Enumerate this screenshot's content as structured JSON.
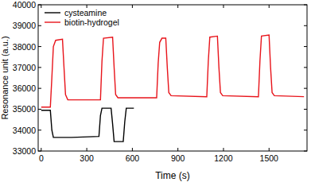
{
  "chart_data": {
    "type": "line",
    "x_label": "Time (s)",
    "y_label": "Resonance unit (a.u.)",
    "xlim": [
      -20,
      1750
    ],
    "xticks": [
      0,
      300,
      600,
      900,
      1200,
      1500
    ],
    "ylim": [
      33000,
      40000
    ],
    "yticks": [
      33000,
      34000,
      35000,
      36000,
      37000,
      38000,
      39000,
      40000
    ],
    "legend": "upper-left",
    "grid": false,
    "series": [
      {
        "name": "cysteamine",
        "color": "#000000",
        "x": [
          0,
          60,
          70,
          80,
          200,
          380,
          390,
          400,
          460,
          470,
          480,
          540,
          550,
          560,
          610
        ],
        "values": [
          34950,
          34950,
          34000,
          33650,
          33650,
          33700,
          34700,
          35050,
          35050,
          34300,
          33450,
          33450,
          34400,
          35050,
          35050
        ]
      },
      {
        "name": "biotin-hydrogel",
        "color": "#e8141b",
        "x": [
          0,
          60,
          70,
          80,
          95,
          140,
          150,
          160,
          175,
          390,
          400,
          410,
          470,
          480,
          490,
          505,
          760,
          770,
          780,
          795,
          820,
          830,
          840,
          855,
          1090,
          1100,
          1110,
          1160,
          1170,
          1180,
          1195,
          1430,
          1440,
          1450,
          1500,
          1510,
          1520,
          1535,
          1730
        ],
        "values": [
          35100,
          35100,
          36500,
          38000,
          38300,
          38350,
          37000,
          35700,
          35450,
          35450,
          37300,
          38400,
          38450,
          37000,
          35700,
          35550,
          35550,
          37200,
          38200,
          38400,
          38400,
          37000,
          35800,
          35650,
          35600,
          37300,
          38450,
          38500,
          37000,
          35800,
          35650,
          35600,
          37300,
          38500,
          38550,
          37000,
          35800,
          35650,
          35600
        ]
      }
    ]
  }
}
